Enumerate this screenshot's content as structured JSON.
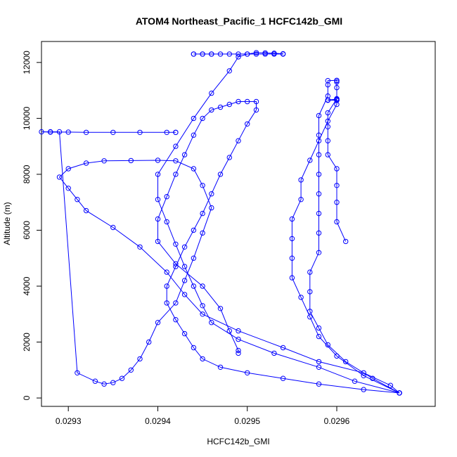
{
  "chart_data": {
    "type": "line",
    "title": "ATOM4 Northeast_Pacific_1 HCFC142b_GMI",
    "xlabel": "HCFC142b_GMI",
    "ylabel": "Altitude (m)",
    "xlim": [
      0.02927,
      0.02971
    ],
    "ylim": [
      -300,
      12750
    ],
    "x_ticks": [
      0.0293,
      0.0294,
      0.0295,
      0.0296
    ],
    "x_tick_labels": [
      "0.0293",
      "0.0294",
      "0.0295",
      "0.0296"
    ],
    "y_ticks": [
      0,
      2000,
      4000,
      6000,
      8000,
      10000,
      12000
    ],
    "y_tick_labels": [
      "0",
      "2000",
      "4000",
      "6000",
      "8000",
      "10000",
      "12000"
    ],
    "grid": false,
    "series_color": "#0000ff",
    "marker": "open-circle",
    "series": [
      {
        "x": [
          0.02967,
          0.02966,
          0.02963,
          0.02958,
          0.02954,
          0.02949,
          0.02945,
          0.02943,
          0.02941,
          0.02938,
          0.02935,
          0.02932,
          0.02931,
          0.0293,
          0.02929,
          0.0293,
          0.02932,
          0.02934,
          0.02937,
          0.0294,
          0.02942,
          0.02944,
          0.02945,
          0.02946,
          0.02945,
          0.02944,
          0.02943,
          0.02942,
          0.0294,
          0.02939,
          0.02938,
          0.02937,
          0.02936,
          0.02935,
          0.02934,
          0.02933,
          0.02931,
          0.02929,
          0.02928,
          0.02927,
          0.02928,
          0.0293,
          0.02932,
          0.02935,
          0.02938,
          0.02941,
          0.02942,
          0.02942
        ],
        "y": [
          180,
          450,
          900,
          1300,
          1800,
          2400,
          3000,
          3700,
          4500,
          5400,
          6100,
          6700,
          7100,
          7500,
          7900,
          8200,
          8400,
          8480,
          8490,
          8500,
          8480,
          8200,
          7600,
          6800,
          5900,
          5000,
          4200,
          3400,
          2700,
          2000,
          1400,
          1000,
          700,
          550,
          500,
          600,
          900,
          9520,
          9520,
          9520,
          9510,
          9510,
          9500,
          9500,
          9500,
          9500,
          9500,
          9500
        ]
      },
      {
        "x": [
          0.02967,
          0.02963,
          0.02958,
          0.02954,
          0.0295,
          0.02947,
          0.02945,
          0.02944,
          0.02943,
          0.02942,
          0.02941,
          0.02941,
          0.02942,
          0.02943,
          0.02944,
          0.02945,
          0.02946,
          0.02947,
          0.02948,
          0.02949,
          0.0295,
          0.02951,
          0.02951,
          0.0295,
          0.02949,
          0.02948,
          0.02947,
          0.02946,
          0.02945,
          0.02944,
          0.02943,
          0.02942,
          0.02941,
          0.0294,
          0.0294,
          0.02942,
          0.02945,
          0.02947,
          0.02948,
          0.02949,
          0.02949
        ],
        "y": [
          180,
          300,
          500,
          700,
          900,
          1100,
          1400,
          1800,
          2300,
          2800,
          3400,
          4000,
          4700,
          5400,
          6000,
          6600,
          7300,
          8000,
          8600,
          9200,
          9800,
          10300,
          10600,
          10600,
          10600,
          10500,
          10400,
          10300,
          10000,
          9400,
          8700,
          8000,
          7200,
          6400,
          5600,
          4800,
          4000,
          3200,
          2400,
          1700,
          1600
        ]
      },
      {
        "x": [
          0.02967,
          0.02962,
          0.02958,
          0.02953,
          0.02949,
          0.02946,
          0.02945,
          0.02944,
          0.02943,
          0.02942,
          0.02941,
          0.0294,
          0.0294,
          0.02942,
          0.02944,
          0.02946,
          0.02948,
          0.02949,
          0.0295,
          0.02951,
          0.02952,
          0.02953,
          0.02954,
          0.02954,
          0.02953,
          0.02952,
          0.02951,
          0.0295,
          0.02948,
          0.02946,
          0.02945,
          0.02944,
          0.02944,
          0.02945,
          0.02946,
          0.02947,
          0.02949
        ],
        "y": [
          180,
          600,
          1100,
          1600,
          2100,
          2700,
          3300,
          4000,
          4700,
          5500,
          6300,
          7100,
          8000,
          9000,
          10000,
          10900,
          11700,
          12200,
          12300,
          12350,
          12340,
          12330,
          12310,
          12300,
          12300,
          12300,
          12300,
          12300,
          12300,
          12300,
          12300,
          12300,
          12300,
          12300,
          12300,
          12300,
          12300
        ]
      },
      {
        "x": [
          0.02967,
          0.02964,
          0.02961,
          0.02959,
          0.02958,
          0.02957,
          0.02957,
          0.02957,
          0.02958,
          0.02958,
          0.02958,
          0.02958,
          0.02958,
          0.02958,
          0.02958,
          0.02958,
          0.02959,
          0.02959,
          0.02959,
          0.0296,
          0.0296,
          0.0296,
          0.0296,
          0.0296,
          0.02959,
          0.02959,
          0.02959,
          0.02959,
          0.0296,
          0.0296,
          0.0296,
          0.0296,
          0.02961
        ],
        "y": [
          180,
          700,
          1300,
          1900,
          2500,
          3100,
          3800,
          4500,
          5200,
          5900,
          6600,
          7300,
          8000,
          8700,
          9400,
          10100,
          10800,
          11200,
          11350,
          11360,
          11350,
          11300,
          11100,
          10700,
          10200,
          9700,
          9200,
          8700,
          8200,
          7600,
          7000,
          6300,
          5600
        ]
      },
      {
        "x": [
          0.02967,
          0.02963,
          0.0296,
          0.02958,
          0.02957,
          0.02956,
          0.02955,
          0.02955,
          0.02955,
          0.02955,
          0.02956,
          0.02956,
          0.02957,
          0.02958,
          0.02959,
          0.0296,
          0.0296,
          0.0296,
          0.02959,
          0.02959,
          0.02959,
          0.0296,
          0.0296,
          0.0296,
          0.0296,
          0.0296,
          0.0296
        ],
        "y": [
          180,
          800,
          1500,
          2200,
          2900,
          3600,
          4300,
          5000,
          5700,
          6400,
          7100,
          7800,
          8500,
          9200,
          9900,
          10500,
          10700,
          10680,
          10660,
          10650,
          10650,
          10650,
          10650,
          10650,
          10650,
          10650,
          10650
        ]
      }
    ]
  }
}
